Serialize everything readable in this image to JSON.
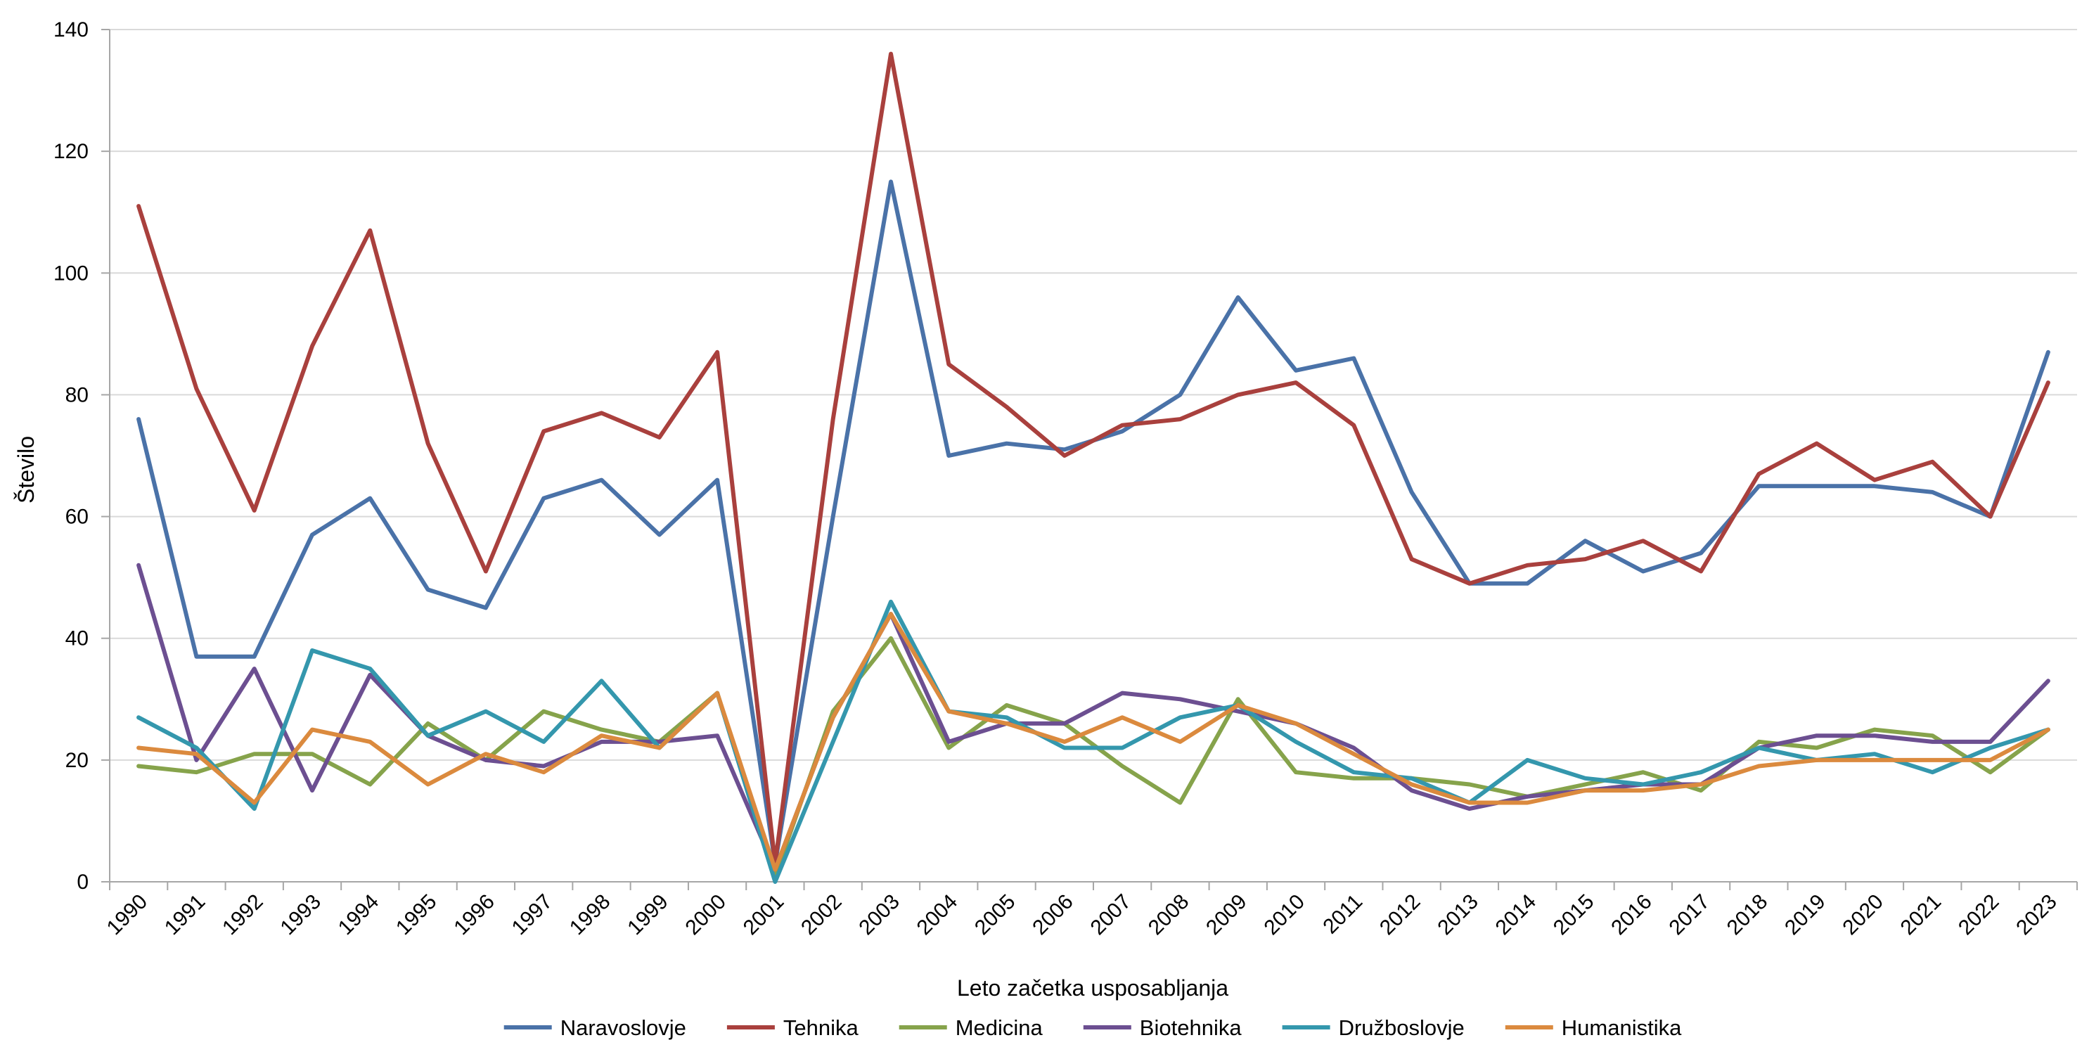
{
  "chart_data": {
    "type": "line",
    "title": "",
    "xlabel": "Leto začetka usposabljanja",
    "ylabel": "Število",
    "ylim": [
      0,
      140
    ],
    "yticks": [
      0,
      20,
      40,
      60,
      80,
      100,
      120,
      140
    ],
    "grid": true,
    "legend_position": "bottom",
    "x": [
      "1990",
      "1991",
      "1992",
      "1993",
      "1994",
      "1995",
      "1996",
      "1997",
      "1998",
      "1999",
      "2000",
      "2001",
      "2002",
      "2003",
      "2004",
      "2005",
      "2006",
      "2007",
      "2008",
      "2009",
      "2010",
      "2011",
      "2012",
      "2013",
      "2014",
      "2015",
      "2016",
      "2017",
      "2018",
      "2019",
      "2020",
      "2021",
      "2022",
      "2023"
    ],
    "series": [
      {
        "name": "Naravoslovje",
        "color": "#4a72a8",
        "values": [
          76,
          37,
          37,
          57,
          63,
          48,
          45,
          63,
          66,
          57,
          66,
          3,
          60,
          115,
          70,
          72,
          71,
          74,
          80,
          96,
          84,
          86,
          64,
          49,
          49,
          56,
          51,
          54,
          65,
          65,
          65,
          64,
          60,
          87
        ]
      },
      {
        "name": "Tehnika",
        "color": "#a9403d",
        "values": [
          111,
          81,
          61,
          88,
          107,
          72,
          51,
          74,
          77,
          73,
          87,
          3,
          76,
          136,
          85,
          78,
          70,
          75,
          76,
          80,
          82,
          75,
          53,
          49,
          52,
          53,
          56,
          51,
          67,
          72,
          66,
          69,
          60,
          82
        ]
      },
      {
        "name": "Medicina",
        "color": "#86a34b",
        "values": [
          19,
          18,
          21,
          21,
          16,
          26,
          20,
          28,
          25,
          23,
          31,
          1,
          28,
          40,
          22,
          29,
          26,
          19,
          13,
          30,
          18,
          17,
          17,
          16,
          14,
          16,
          18,
          15,
          23,
          22,
          25,
          24,
          18,
          25
        ]
      },
      {
        "name": "Biotehnika",
        "color": "#6c4f91",
        "values": [
          52,
          20,
          35,
          15,
          34,
          24,
          20,
          19,
          23,
          23,
          24,
          2,
          27,
          44,
          23,
          26,
          26,
          31,
          30,
          28,
          26,
          22,
          15,
          12,
          14,
          15,
          16,
          16,
          22,
          24,
          24,
          23,
          23,
          33
        ]
      },
      {
        "name": "Družboslovje",
        "color": "#3497ad",
        "values": [
          27,
          22,
          12,
          38,
          35,
          24,
          28,
          23,
          33,
          22,
          31,
          0,
          23,
          46,
          28,
          27,
          22,
          22,
          27,
          29,
          23,
          18,
          17,
          13,
          20,
          17,
          16,
          18,
          22,
          20,
          21,
          18,
          22,
          25
        ]
      },
      {
        "name": "Humanistika",
        "color": "#db8a3e",
        "values": [
          22,
          21,
          13,
          25,
          23,
          16,
          21,
          18,
          24,
          22,
          31,
          2,
          27,
          44,
          28,
          26,
          23,
          27,
          23,
          29,
          26,
          21,
          16,
          13,
          13,
          15,
          15,
          16,
          19,
          20,
          20,
          20,
          20,
          25
        ]
      }
    ]
  }
}
